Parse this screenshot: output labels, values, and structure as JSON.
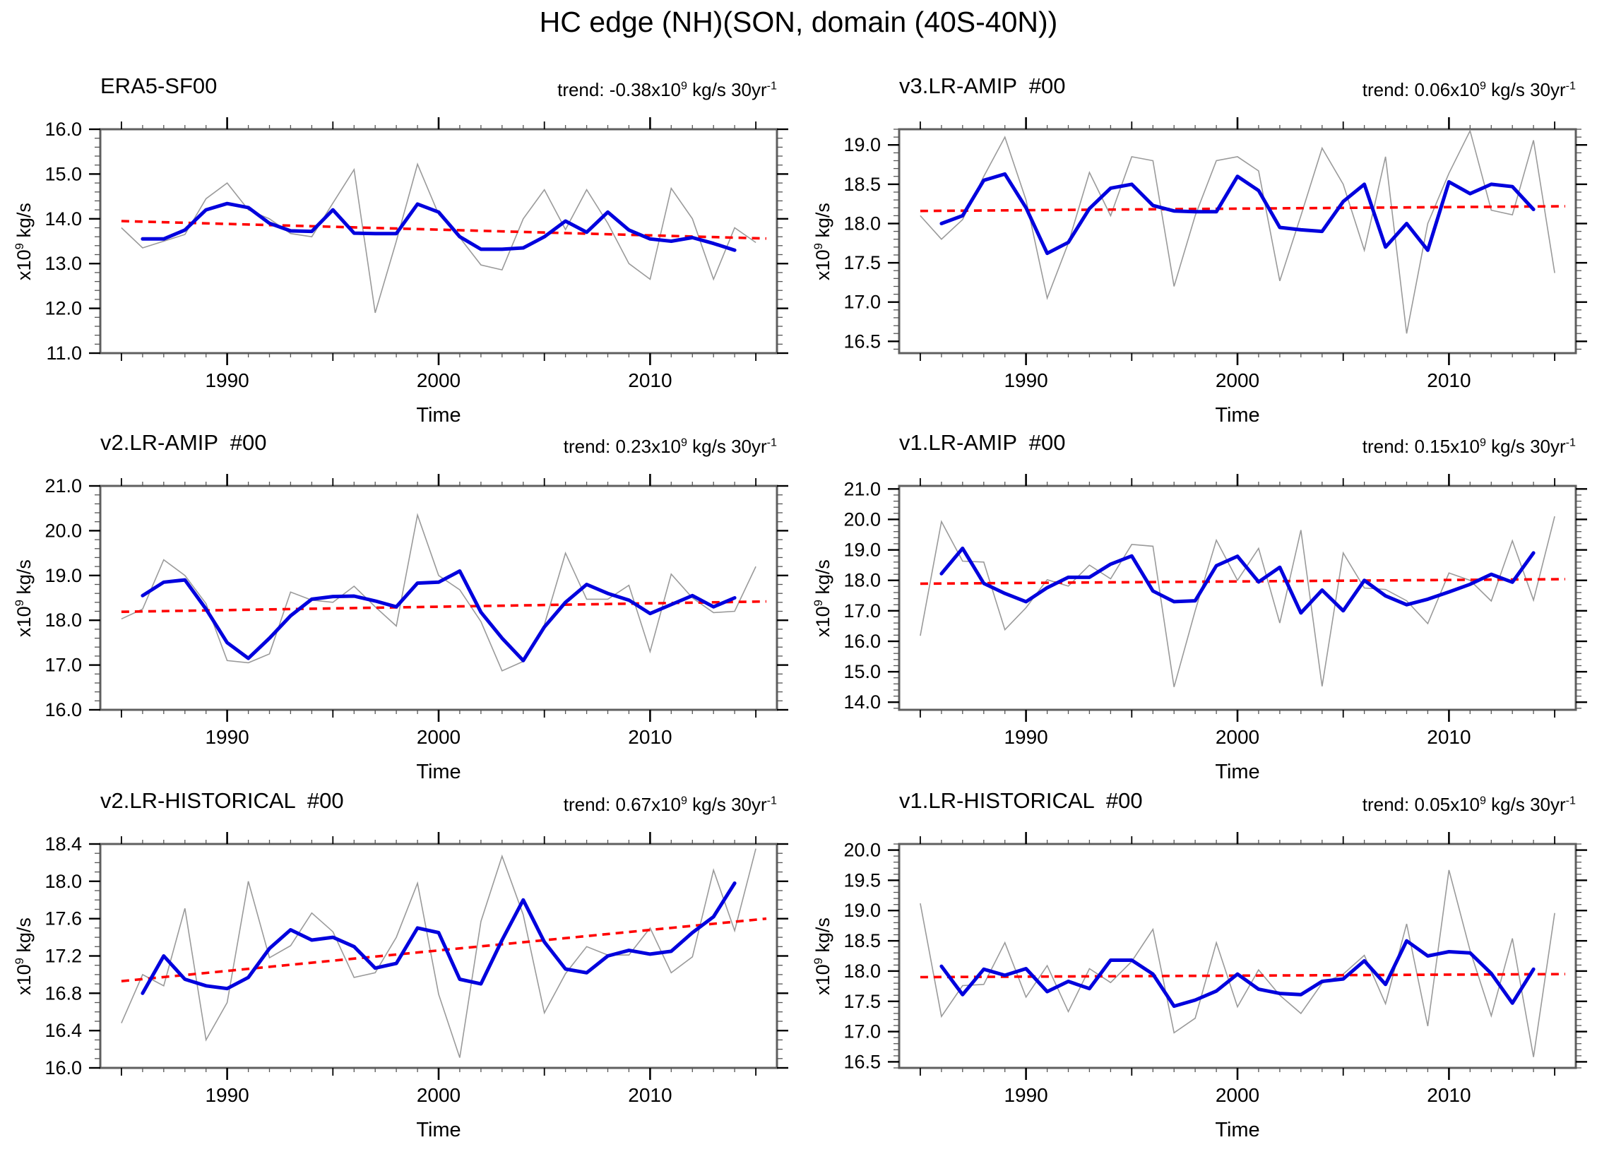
{
  "figure_title": "HC edge (NH)(SON, domain (40S-40N))",
  "axis_labels": {
    "y_base": "x10",
    "y_sup": "9",
    "y_rest": " kg/s",
    "x": "Time"
  },
  "colors": {
    "annual": "#9a9a9a",
    "smoothed": "#0000dd",
    "trend": "#ff0000",
    "frame": "#5f5f5f",
    "major_tick": "#000000",
    "minor_tick": "#555555"
  },
  "xaxis": {
    "min": 1984,
    "max": 2016,
    "start_year": 1985,
    "end_year": 2015,
    "labeled_ticks": [
      1990,
      2000,
      2010
    ],
    "labeled_tick_text": [
      "1990",
      "2000",
      "2010"
    ],
    "medium_ticks": [
      1985,
      1995,
      2005,
      2015
    ]
  },
  "chart_data": [
    {
      "type": "line",
      "title": "ERA5-SF00",
      "trend_prefix": "trend: -0.38x10",
      "trend_sup1": "9",
      "trend_mid": " kg/s 30yr",
      "trend_sup2": "-1",
      "yaxis": {
        "min": 11.0,
        "max": 16.0,
        "majors": [
          11.0,
          12.0,
          13.0,
          14.0,
          15.0,
          16.0
        ],
        "minor_step": 0.2
      },
      "series": [
        {
          "name": "annual",
          "start_year": 1985,
          "values": [
            13.8,
            13.35,
            13.5,
            13.65,
            14.45,
            14.8,
            14.2,
            14.0,
            13.67,
            13.6,
            14.35,
            15.1,
            11.9,
            13.5,
            15.22,
            14.1,
            13.58,
            12.97,
            12.86,
            14.0,
            14.65,
            13.76,
            14.65,
            13.9,
            13.0,
            12.65,
            14.68,
            14.0,
            12.65,
            13.8,
            13.47
          ]
        },
        {
          "name": "smoothed",
          "start_year": 1986,
          "values": [
            13.55,
            13.55,
            13.75,
            14.2,
            14.34,
            14.25,
            13.9,
            13.73,
            13.72,
            14.2,
            13.68,
            13.67,
            13.67,
            14.33,
            14.15,
            13.6,
            13.32,
            13.32,
            13.35,
            13.6,
            13.95,
            13.7,
            14.15,
            13.75,
            13.55,
            13.5,
            13.58,
            13.45,
            13.3
          ]
        },
        {
          "name": "trend_line",
          "x": [
            1985,
            2015.5
          ],
          "y": [
            13.95,
            13.56
          ]
        }
      ]
    },
    {
      "type": "line",
      "title": "v3.LR-AMIP  #00",
      "trend_prefix": "trend: 0.06x10",
      "trend_sup1": "9",
      "trend_mid": " kg/s 30yr",
      "trend_sup2": "-1",
      "yaxis": {
        "min": 16.35,
        "max": 19.2,
        "majors": [
          16.5,
          17.0,
          17.5,
          18.0,
          18.5,
          19.0
        ],
        "minor_step": 0.1
      },
      "series": [
        {
          "name": "annual",
          "start_year": 1985,
          "values": [
            18.1,
            17.8,
            18.05,
            18.6,
            19.1,
            18.3,
            17.05,
            17.75,
            18.65,
            18.1,
            18.85,
            18.8,
            17.2,
            18.1,
            18.8,
            18.85,
            18.67,
            17.27,
            18.1,
            18.96,
            18.5,
            17.66,
            18.85,
            16.6,
            18.0,
            18.64,
            19.18,
            18.17,
            18.11,
            19.06,
            17.37
          ]
        },
        {
          "name": "smoothed",
          "start_year": 1986,
          "values": [
            18.0,
            18.1,
            18.55,
            18.63,
            18.2,
            17.62,
            17.76,
            18.19,
            18.45,
            18.5,
            18.23,
            18.16,
            18.15,
            18.15,
            18.6,
            18.42,
            17.95,
            17.92,
            17.9,
            18.28,
            18.5,
            17.7,
            18.0,
            17.66,
            18.53,
            18.38,
            18.5,
            18.47,
            18.18
          ]
        },
        {
          "name": "trend_line",
          "x": [
            1985,
            2015.5
          ],
          "y": [
            18.16,
            18.22
          ]
        }
      ]
    },
    {
      "type": "line",
      "title": "v2.LR-AMIP  #00",
      "trend_prefix": "trend: 0.23x10",
      "trend_sup1": "9",
      "trend_mid": " kg/s 30yr",
      "trend_sup2": "-1",
      "yaxis": {
        "min": 16.0,
        "max": 21.0,
        "majors": [
          16.0,
          17.0,
          18.0,
          19.0,
          20.0,
          21.0
        ],
        "minor_step": 0.2
      },
      "series": [
        {
          "name": "annual",
          "start_year": 1985,
          "values": [
            18.03,
            18.25,
            19.35,
            19.0,
            18.37,
            17.1,
            17.05,
            17.25,
            18.63,
            18.45,
            18.4,
            18.76,
            18.3,
            17.87,
            20.35,
            19.0,
            18.68,
            17.97,
            16.87,
            17.08,
            17.9,
            19.5,
            18.47,
            18.47,
            18.78,
            17.3,
            19.03,
            18.5,
            18.17,
            18.2,
            19.2
          ]
        },
        {
          "name": "smoothed",
          "start_year": 1986,
          "values": [
            18.55,
            18.85,
            18.9,
            18.25,
            17.5,
            17.15,
            17.6,
            18.1,
            18.47,
            18.53,
            18.54,
            18.43,
            18.3,
            18.83,
            18.85,
            19.1,
            18.18,
            17.6,
            17.1,
            17.85,
            18.4,
            18.8,
            18.6,
            18.45,
            18.15,
            18.35,
            18.55,
            18.3,
            18.5
          ]
        },
        {
          "name": "trend_line",
          "x": [
            1985,
            2015.5
          ],
          "y": [
            18.19,
            18.42
          ]
        }
      ]
    },
    {
      "type": "line",
      "title": "v1.LR-AMIP  #00",
      "trend_prefix": "trend: 0.15x10",
      "trend_sup1": "9",
      "trend_mid": " kg/s 30yr",
      "trend_sup2": "-1",
      "yaxis": {
        "min": 13.75,
        "max": 21.1,
        "majors": [
          14.0,
          15.0,
          16.0,
          17.0,
          18.0,
          19.0,
          20.0,
          21.0
        ],
        "minor_step": 0.2
      },
      "series": [
        {
          "name": "annual",
          "start_year": 1985,
          "values": [
            16.18,
            19.93,
            18.63,
            18.6,
            16.38,
            17.1,
            18.02,
            17.81,
            18.5,
            18.05,
            19.18,
            19.12,
            14.5,
            17.0,
            19.32,
            18.0,
            19.05,
            16.6,
            19.65,
            14.52,
            18.9,
            17.75,
            17.7,
            17.33,
            16.58,
            18.24,
            18.0,
            17.32,
            19.3,
            17.35,
            20.1
          ]
        },
        {
          "name": "smoothed",
          "start_year": 1986,
          "values": [
            18.22,
            19.05,
            17.9,
            17.57,
            17.3,
            17.76,
            18.1,
            18.1,
            18.53,
            18.8,
            17.65,
            17.3,
            17.33,
            18.48,
            18.79,
            17.95,
            18.43,
            16.93,
            17.68,
            17.0,
            18.0,
            17.49,
            17.2,
            17.38,
            17.62,
            17.87,
            18.2,
            17.94,
            18.9
          ]
        },
        {
          "name": "trend_line",
          "x": [
            1985,
            2015.5
          ],
          "y": [
            17.89,
            18.04
          ]
        }
      ]
    },
    {
      "type": "line",
      "title": "v2.LR-HISTORICAL  #00",
      "trend_prefix": "trend: 0.67x10",
      "trend_sup1": "9",
      "trend_mid": " kg/s 30yr",
      "trend_sup2": "-1",
      "yaxis": {
        "min": 16.0,
        "max": 18.4,
        "majors": [
          16.0,
          16.4,
          16.8,
          17.2,
          17.6,
          18.0,
          18.4
        ],
        "minor_step": 0.1
      },
      "series": [
        {
          "name": "annual",
          "start_year": 1985,
          "values": [
            16.48,
            17.0,
            16.88,
            17.71,
            16.3,
            16.7,
            18.0,
            17.18,
            17.31,
            17.66,
            17.46,
            16.97,
            17.02,
            17.4,
            17.98,
            16.79,
            16.11,
            17.57,
            18.27,
            17.64,
            16.59,
            17.01,
            17.3,
            17.21,
            17.21,
            17.5,
            17.02,
            17.19,
            18.12,
            17.47,
            18.35
          ]
        },
        {
          "name": "smoothed",
          "start_year": 1986,
          "values": [
            16.8,
            17.2,
            16.95,
            16.88,
            16.85,
            16.97,
            17.28,
            17.48,
            17.37,
            17.4,
            17.3,
            17.07,
            17.12,
            17.5,
            17.45,
            16.95,
            16.9,
            17.37,
            17.8,
            17.35,
            17.06,
            17.02,
            17.2,
            17.26,
            17.22,
            17.25,
            17.45,
            17.62,
            17.98
          ]
        },
        {
          "name": "trend_line",
          "x": [
            1985,
            2015.5
          ],
          "y": [
            16.93,
            17.6
          ]
        }
      ]
    },
    {
      "type": "line",
      "title": "v1.LR-HISTORICAL  #00",
      "trend_prefix": "trend: 0.05x10",
      "trend_sup1": "9",
      "trend_mid": " kg/s 30yr",
      "trend_sup2": "-1",
      "yaxis": {
        "min": 16.4,
        "max": 20.1,
        "majors": [
          16.5,
          17.0,
          17.5,
          18.0,
          18.5,
          19.0,
          19.5,
          20.0
        ],
        "minor_step": 0.1
      },
      "series": [
        {
          "name": "annual",
          "start_year": 1985,
          "values": [
            19.12,
            17.25,
            17.76,
            17.78,
            18.47,
            17.57,
            18.09,
            17.33,
            18.04,
            17.81,
            18.16,
            18.69,
            16.98,
            17.22,
            18.47,
            17.41,
            18.02,
            17.6,
            17.3,
            17.8,
            17.95,
            18.26,
            17.46,
            18.78,
            17.09,
            19.67,
            18.34,
            17.26,
            18.54,
            16.58,
            18.96
          ]
        },
        {
          "name": "smoothed",
          "start_year": 1986,
          "values": [
            18.08,
            17.61,
            18.03,
            17.93,
            18.04,
            17.66,
            17.83,
            17.71,
            18.18,
            18.18,
            17.95,
            17.42,
            17.52,
            17.67,
            17.95,
            17.7,
            17.63,
            17.61,
            17.83,
            17.87,
            18.17,
            17.78,
            18.5,
            18.25,
            18.32,
            18.3,
            17.96,
            17.47,
            18.03
          ]
        },
        {
          "name": "trend_line",
          "x": [
            1985,
            2015.5
          ],
          "y": [
            17.9,
            17.95
          ]
        }
      ]
    }
  ]
}
